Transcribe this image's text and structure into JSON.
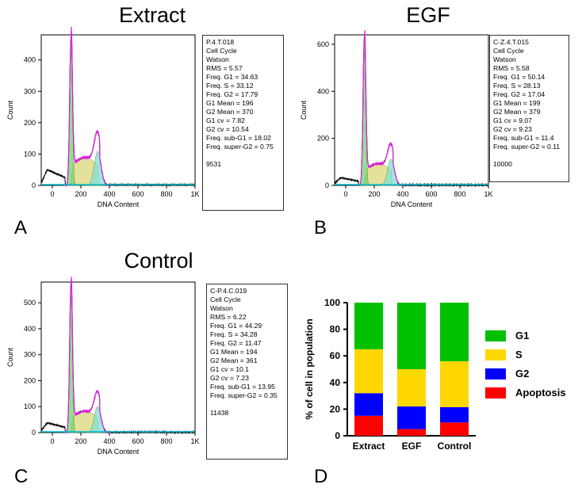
{
  "panels": [
    {
      "id": "A",
      "title": "Extract",
      "letter": "A",
      "ylabel": "Count",
      "xlabel": "DNA Content",
      "x_ticks": [
        "0",
        "200",
        "400",
        "600",
        "800",
        "1K"
      ],
      "y_ticks": [
        "0",
        "100",
        "200",
        "300",
        "400"
      ],
      "ymax": 480,
      "peak_count": 470,
      "sub_g1_level": 42,
      "g2_level": 108,
      "stats": [
        "P.4.T.018",
        "Cell Cycle",
        "Watson",
        "RMS = 5.57",
        "Freq. G1 = 34.63",
        "Freq. S = 33.12",
        "Freq. G2 = 17.79",
        "G1 Mean = 196",
        "G2 Mean = 370",
        "G1 cv = 7.82",
        "G2 cv = 10.54",
        "Freq. sub-G1 = 18.02",
        "Freq. super-G2 = 0.75",
        "",
        "9531"
      ]
    },
    {
      "id": "B",
      "title": "EGF",
      "letter": "B",
      "ylabel": "Count",
      "xlabel": "DNA Content",
      "x_ticks": [
        "0",
        "200",
        "400",
        "600",
        "800",
        "1K"
      ],
      "y_ticks": [
        "0",
        "200",
        "400",
        "600"
      ],
      "ymax": 640,
      "peak_count": 630,
      "sub_g1_level": 25,
      "g2_level": 112,
      "stats": [
        "C-Z.4.T.015",
        "Cell Cycle",
        "Watson",
        "RMS = 5.58",
        "Freq. G1 = 50.14",
        "Freq. S = 28.13",
        "Freq. G2 = 17.04",
        "G1 Mean = 199",
        "G2 Mean = 379",
        "G1 cv = 9.07",
        "G2 cv = 9.23",
        "Freq. sub-G1 = 11.4",
        "Freq. super-G2 = 0.11",
        "",
        "10000"
      ]
    },
    {
      "id": "C",
      "title": "Control",
      "letter": "C",
      "ylabel": "Count",
      "xlabel": "DNA Content",
      "x_ticks": [
        "0",
        "200",
        "400",
        "600",
        "800",
        "1K"
      ],
      "y_ticks": [
        "0",
        "100",
        "200",
        "300",
        "400",
        "500"
      ],
      "ymax": 580,
      "peak_count": 575,
      "sub_g1_level": 30,
      "g2_level": 100,
      "stats": [
        "C-P.4.C.019",
        "Cell Cycle",
        "Watson",
        "RMS = 6.22",
        "Freq. G1 = 44.29",
        "Freq. S = 34.28",
        "Freq. G2 = 11.47",
        "G1 Mean = 194",
        "G2 Mean = 361",
        "G1 cv = 10.1",
        "G2 cv = 7.23",
        "Freq. sub-G1 = 13.95",
        "Freq. super-G2 = 0.35",
        "",
        "11438"
      ]
    }
  ],
  "panel_d_letter": "D",
  "chart_data": {
    "type": "bar",
    "stacked": true,
    "categories": [
      "Extract",
      "EGF",
      "Control"
    ],
    "ylabel": "% of cell in population",
    "ylim": [
      0,
      100
    ],
    "y_ticks": [
      "0",
      "20",
      "40",
      "60",
      "80",
      "100"
    ],
    "series": [
      {
        "name": "Apoptosis",
        "color": "#ff0000",
        "values": [
          15,
          5,
          10
        ]
      },
      {
        "name": "G2",
        "color": "#0000ff",
        "values": [
          17,
          17,
          11.5
        ]
      },
      {
        "name": "S",
        "color": "#ffd700",
        "values": [
          33,
          28,
          34.5
        ]
      },
      {
        "name": "G1",
        "color": "#00c000",
        "values": [
          35,
          50,
          44
        ]
      }
    ],
    "legend": [
      {
        "name": "G1",
        "color": "#00c000"
      },
      {
        "name": "S",
        "color": "#ffd700"
      },
      {
        "name": "G2",
        "color": "#0000ff"
      },
      {
        "name": "Apoptosis",
        "color": "#ff0000"
      }
    ],
    "legend_position": "right"
  }
}
